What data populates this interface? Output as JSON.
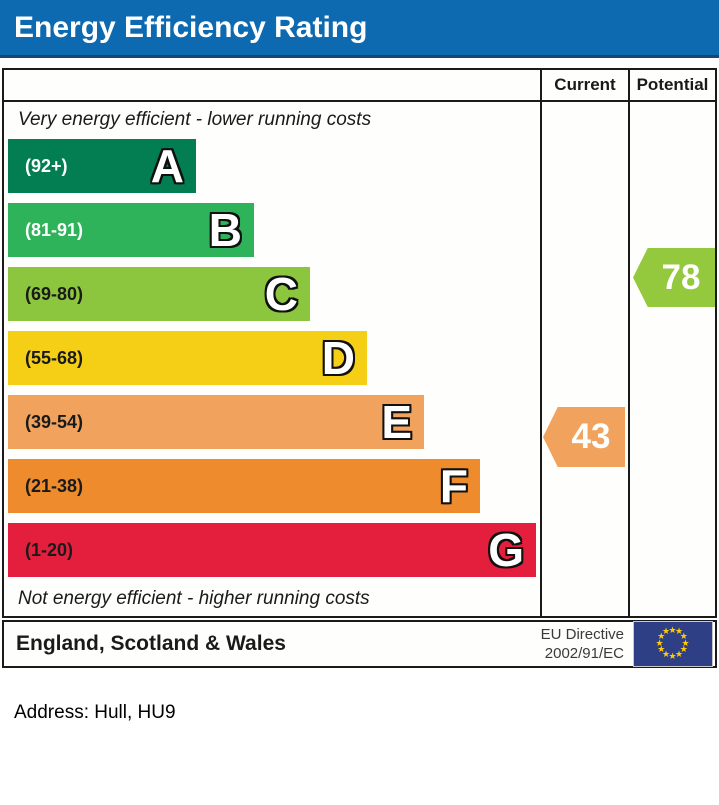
{
  "title": {
    "text": "Energy Efficiency Rating",
    "bg_color": "#0d69b0"
  },
  "table": {
    "header": {
      "current": "Current",
      "potential": "Potential"
    },
    "top_note": "Very energy efficient - lower running costs",
    "bottom_note": "Not energy efficient - higher running costs"
  },
  "chart_data": {
    "type": "bar",
    "title": "Energy Efficiency Rating",
    "categories": [
      "A",
      "B",
      "C",
      "D",
      "E",
      "F",
      "G"
    ],
    "bands": [
      {
        "letter": "A",
        "range": "(92+)",
        "min": 92,
        "max": 100,
        "color": "#027e52",
        "label_color": "#ffffff"
      },
      {
        "letter": "B",
        "range": "(81-91)",
        "min": 81,
        "max": 91,
        "color": "#2eb35a",
        "label_color": "#ffffff"
      },
      {
        "letter": "C",
        "range": "(69-80)",
        "min": 69,
        "max": 80,
        "color": "#8cc63f",
        "label_color": "#1a1a1a"
      },
      {
        "letter": "D",
        "range": "(55-68)",
        "min": 55,
        "max": 68,
        "color": "#f5cf15",
        "label_color": "#1a1a1a"
      },
      {
        "letter": "E",
        "range": "(39-54)",
        "min": 39,
        "max": 54,
        "color": "#f1a35d",
        "label_color": "#1a1a1a"
      },
      {
        "letter": "F",
        "range": "(21-38)",
        "min": 21,
        "max": 38,
        "color": "#ee8b2d",
        "label_color": "#1a1a1a"
      },
      {
        "letter": "G",
        "range": "(1-20)",
        "min": 1,
        "max": 20,
        "color": "#e41f3d",
        "label_color": "#1a1a1a"
      }
    ],
    "current": {
      "value": "43",
      "band": "E",
      "color": "#f1a35d"
    },
    "potential": {
      "value": "78",
      "band": "C",
      "color": "#94c83d"
    }
  },
  "footer": {
    "region": "England, Scotland & Wales",
    "directive_line1": "EU Directive",
    "directive_line2": "2002/91/EC",
    "eu_flag": {
      "bg": "#2e3f85",
      "star_color": "#ffcc00",
      "stars": 12
    }
  },
  "address": {
    "label": "Address: Hull, HU9"
  }
}
